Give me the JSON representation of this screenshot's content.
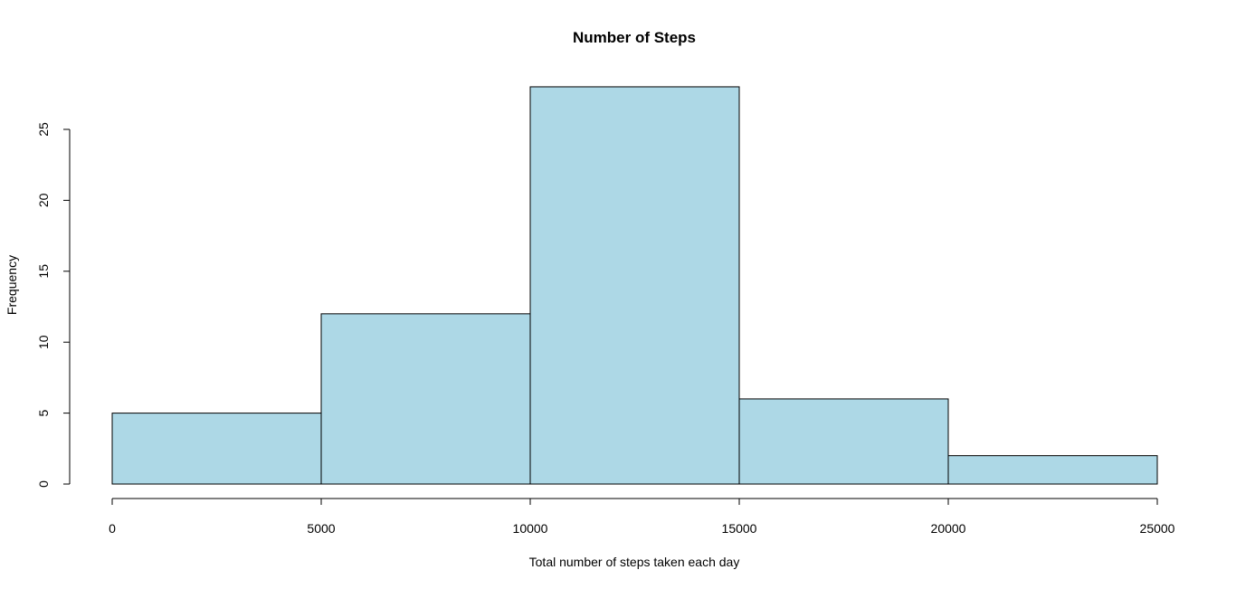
{
  "chart_data": {
    "type": "bar",
    "subtype": "histogram",
    "title": "Number of Steps",
    "xlabel": "Total number of steps taken each day",
    "ylabel": "Frequency",
    "bins": [
      {
        "from": 0,
        "to": 5000,
        "count": 5
      },
      {
        "from": 5000,
        "to": 10000,
        "count": 12
      },
      {
        "from": 10000,
        "to": 15000,
        "count": 28
      },
      {
        "from": 15000,
        "to": 20000,
        "count": 6
      },
      {
        "from": 20000,
        "to": 25000,
        "count": 2
      }
    ],
    "xlim": [
      0,
      25000
    ],
    "ylim": [
      0,
      28
    ],
    "x_ticks": [
      0,
      5000,
      10000,
      15000,
      20000,
      25000
    ],
    "y_ticks": [
      0,
      5,
      10,
      15,
      20,
      25
    ],
    "bar_color": "#add8e6",
    "border_color": "#000000",
    "grid": false,
    "legend": "none"
  }
}
